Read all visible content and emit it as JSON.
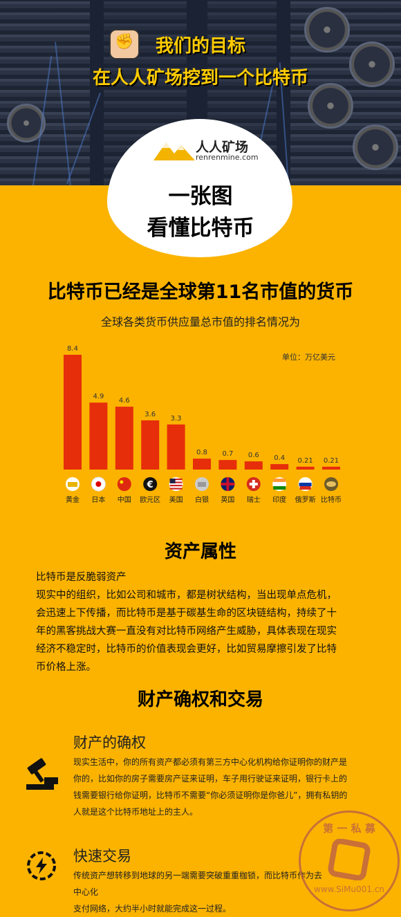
{
  "hero": {
    "line1": "我们的目标",
    "line2": "在人人矿场挖到一个比特币"
  },
  "logo": {
    "name": "人人矿场",
    "domain": "renrenmine.com"
  },
  "main_title": {
    "line1": "一张图",
    "line2": "看懂比特币"
  },
  "section1": {
    "title": "比特币已经是全球第11名市值的货币",
    "subtitle": "全球各类货币供应量总市值的排名情况为"
  },
  "chart_data": {
    "type": "bar",
    "unit_label": "单位：万亿美元",
    "categories": [
      "黄金",
      "日本",
      "中国",
      "欧元区",
      "美国",
      "白银",
      "英国",
      "瑞士",
      "印度",
      "俄罗斯",
      "比特币"
    ],
    "values": [
      8.4,
      4.9,
      4.6,
      3.6,
      3.3,
      0.8,
      0.7,
      0.6,
      0.4,
      0.21,
      0.21
    ],
    "value_labels": [
      "8.4",
      "4.9",
      "4.6",
      "3.6",
      "3.3",
      "0.8",
      "0.7",
      "0.6",
      "0.4",
      "0.21",
      "0.21"
    ],
    "flag_icons": [
      "gold-icon",
      "japan-flag-icon",
      "china-flag-icon",
      "euro-icon",
      "usa-flag-icon",
      "silver-icon",
      "uk-flag-icon",
      "switzerland-flag-icon",
      "india-flag-icon",
      "russia-flag-icon",
      "bitcoin-icon"
    ],
    "bar_color": "#e62e0b",
    "ylim": [
      0,
      8.4
    ]
  },
  "section2": {
    "title": "资产属性",
    "lines": [
      "比特币是反脆弱资产",
      "现实中的组织，比如公司和城市，都是树状结构，当出现单点危机，",
      "会迅速上下传播，而比特币是基于碳基生命的区块链结构，持续了十",
      "年的黑客挑战大赛一直没有对比特币网络产生威胁，具体表现在现实",
      "经济不稳定时，比特币的价值表现会更好，比如贸易摩擦引发了比特",
      "币价格上涨。"
    ]
  },
  "section3": {
    "title": "财产确权和交易",
    "item1": {
      "heading": "财产的确权",
      "icon": "gavel-icon",
      "lines": [
        "现实生活中，你的所有资产都必须有第三方中心化机构给你证明你的财产是",
        "你的，比如你的房子需要房产证来证明，车子用行驶证来证明，银行卡上的",
        "钱需要银行给你证明，比特币不需要“你必须证明你是你爸儿”，拥有私钥的",
        "人就是这个比特币地址上的主人。"
      ]
    },
    "item2": {
      "heading": "快速交易",
      "icon": "lightning-icon",
      "lines": [
        "传统资产想转移到地球的另一端需要突破重重枷锁，而比特币作为去中心化",
        "支付网络，大约半小时就能完成这一过程。"
      ]
    }
  },
  "watermark": {
    "top_text": "第 一 私 募",
    "bottom_text": "www.SiMu001.cn"
  },
  "colors": {
    "background": "#fbb300",
    "bar": "#e62e0b",
    "hero_text": "#ffcc00"
  }
}
